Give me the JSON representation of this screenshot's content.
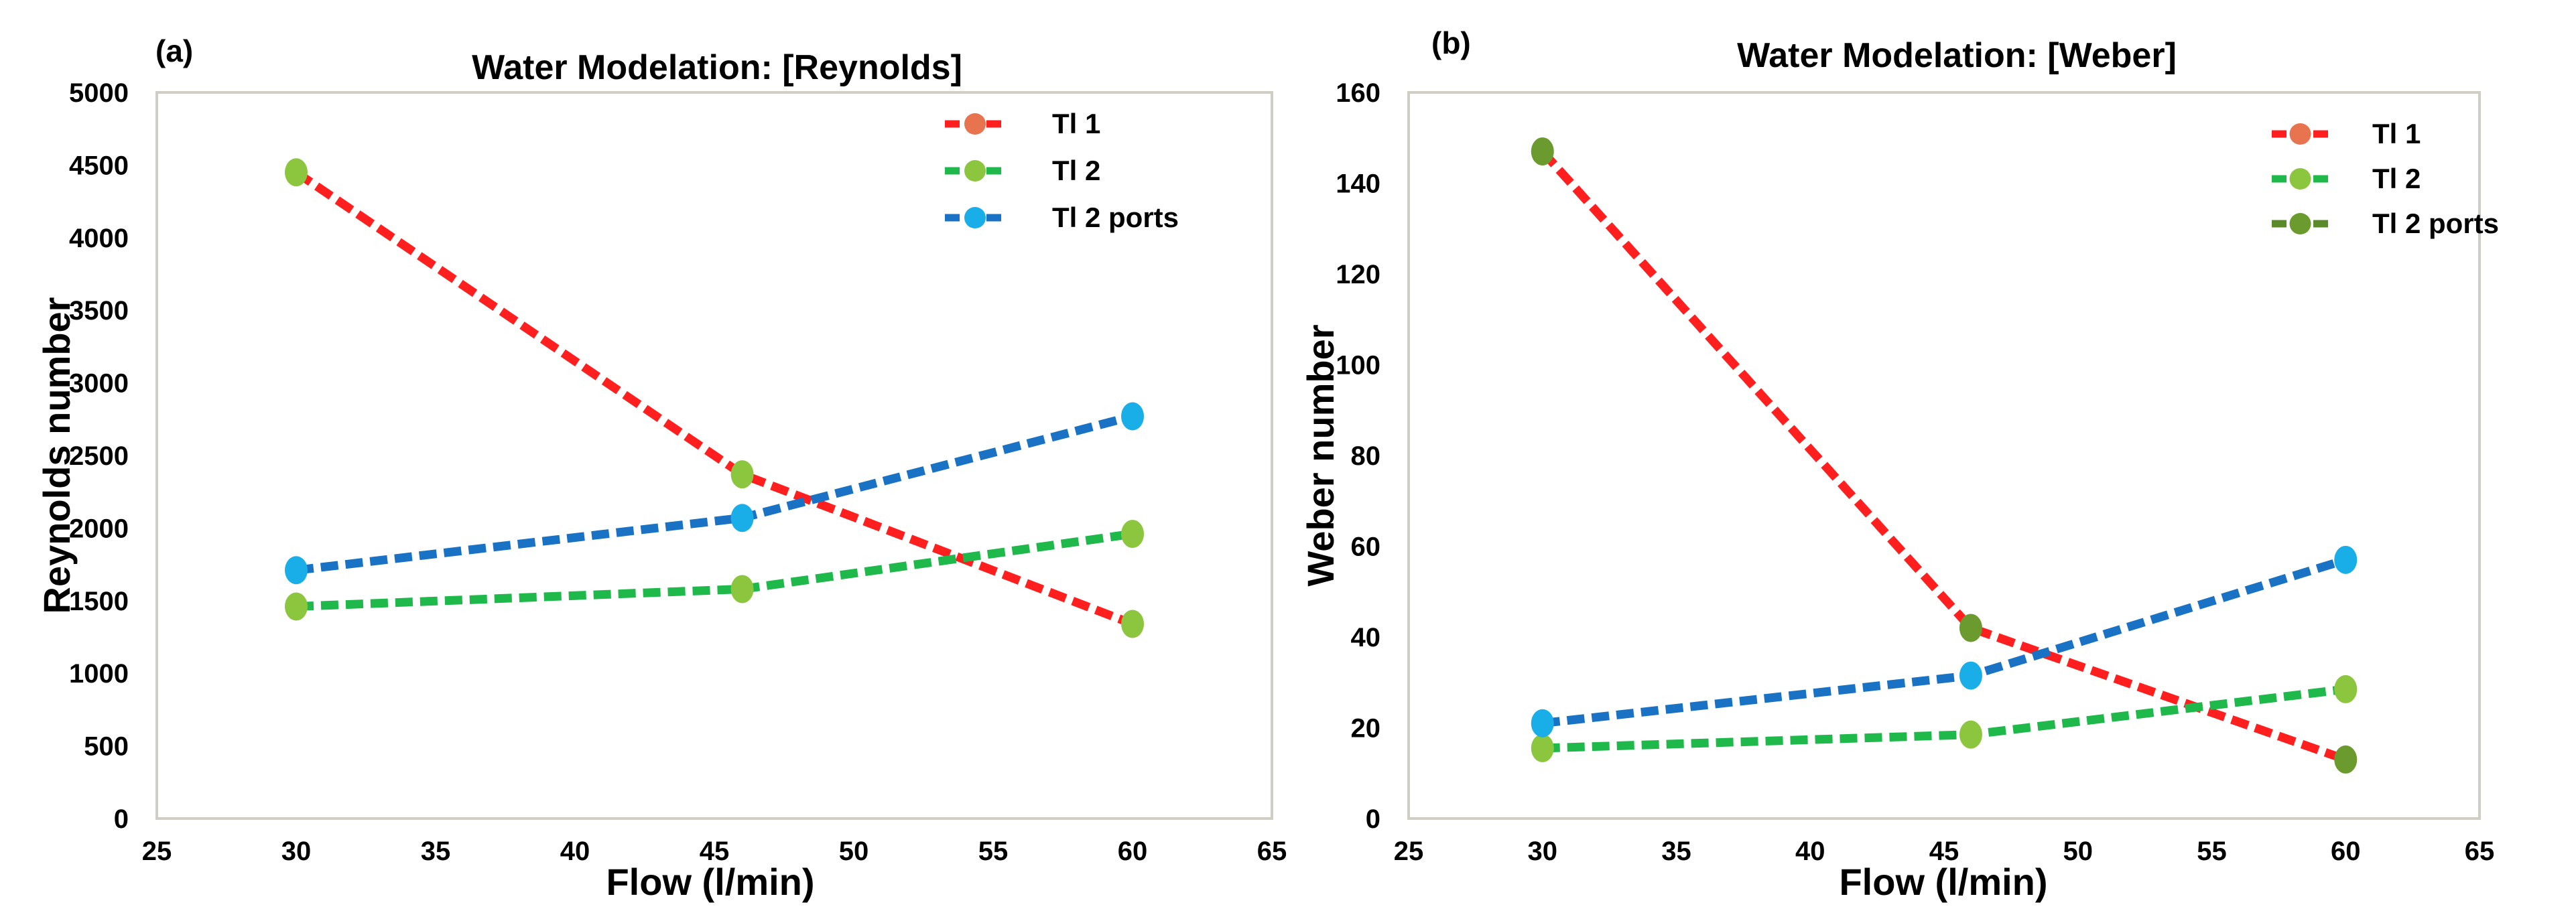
{
  "chart_data": [
    {
      "type": "line",
      "panel_label": "(a)",
      "title": "Water Modelation: [Reynolds]",
      "xlabel": "Flow (l/min)",
      "ylabel": "Reynolds number",
      "xlim": [
        25,
        65
      ],
      "ylim": [
        0,
        5000
      ],
      "xticks": [
        25,
        30,
        35,
        40,
        45,
        50,
        55,
        60,
        65
      ],
      "yticks": [
        0,
        500,
        1000,
        1500,
        2000,
        2500,
        3000,
        3500,
        4000,
        4500,
        5000
      ],
      "legend_position": "top-right",
      "series": [
        {
          "name": "Tl 1",
          "line_color": "#ff1f1f",
          "marker_color": "#e8734f",
          "x": [
            30,
            46,
            60
          ],
          "y": [
            4450,
            2370,
            1340
          ]
        },
        {
          "name": "Tl 2",
          "line_color": "#1fb84a",
          "marker_color": "#8cc63f",
          "x": [
            30,
            46,
            60
          ],
          "y": [
            1460,
            1580,
            1960
          ]
        },
        {
          "name": "Tl 2 ports",
          "line_color": "#1a72c4",
          "marker_color": "#1aaee8",
          "x": [
            30,
            46,
            60
          ],
          "y": [
            1710,
            2070,
            2770
          ]
        }
      ],
      "point_colors": {
        "Tl 1": [
          "#8cc63f",
          "#8cc63f",
          "#8cc63f"
        ],
        "Tl 2": [
          "#8cc63f",
          "#8cc63f",
          "#8cc63f"
        ],
        "Tl 2 ports": [
          "#1aaee8",
          "#1aaee8",
          "#1aaee8"
        ]
      }
    },
    {
      "type": "line",
      "panel_label": "(b)",
      "title": "Water Modelation: [Weber]",
      "xlabel": "Flow (l/min)",
      "ylabel": "Weber number",
      "xlim": [
        25,
        65
      ],
      "ylim": [
        0,
        160
      ],
      "xticks": [
        25,
        30,
        35,
        40,
        45,
        50,
        55,
        60,
        65
      ],
      "yticks": [
        0,
        20,
        40,
        60,
        80,
        100,
        120,
        140,
        160
      ],
      "legend_position": "top-right",
      "series": [
        {
          "name": "Tl 1",
          "line_color": "#ff1f1f",
          "marker_color": "#e8734f",
          "x": [
            30,
            46,
            60
          ],
          "y": [
            147,
            42,
            13
          ]
        },
        {
          "name": "Tl 2",
          "line_color": "#1fb84a",
          "marker_color": "#8cc63f",
          "x": [
            30,
            46,
            60
          ],
          "y": [
            15.5,
            18.5,
            28.5
          ]
        },
        {
          "name": "Tl 2 ports",
          "line_color": "#1a72c4",
          "marker_color": "#1aaee8",
          "legend_line_color": "#5a8a2a",
          "legend_marker_color": "#6b9a2e",
          "x": [
            30,
            46,
            60
          ],
          "y": [
            21,
            31.5,
            57
          ]
        }
      ],
      "point_colors": {
        "Tl 1": [
          "#6b9a2e",
          "#6b9a2e",
          "#6b9a2e"
        ],
        "Tl 2": [
          "#8cc63f",
          "#8cc63f",
          "#8cc63f"
        ],
        "Tl 2 ports": [
          "#1aaee8",
          "#1aaee8",
          "#1aaee8"
        ]
      }
    }
  ]
}
